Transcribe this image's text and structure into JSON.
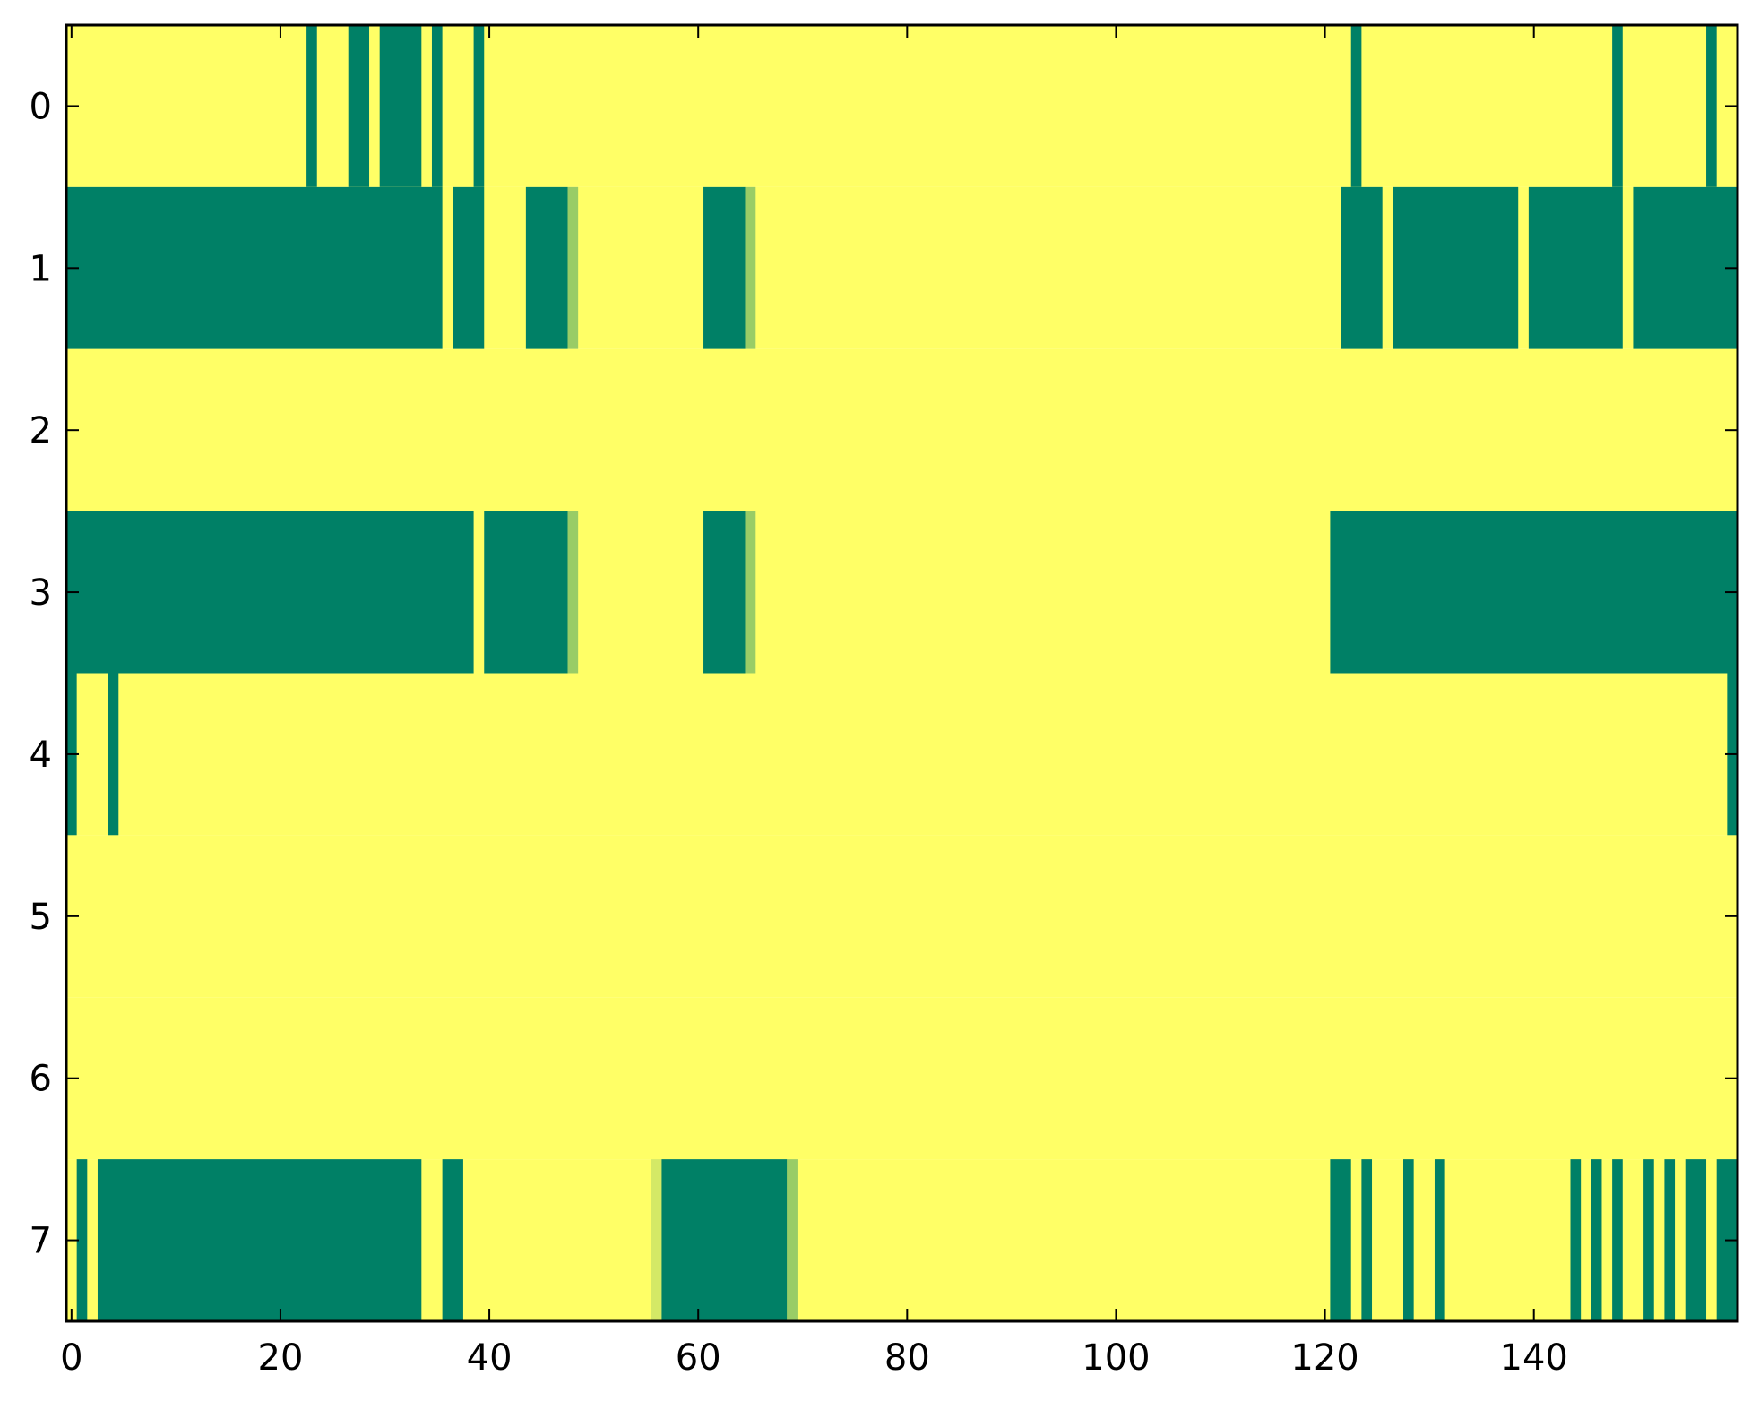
{
  "chart_data": {
    "type": "heatmap",
    "colormap": "summer_r",
    "colors": {
      "low": "#ffff66",
      "high": "#008066",
      "mid_light": "#99cc66",
      "mid_pale": "#d4e966"
    },
    "xlim": [
      -0.5,
      159.5
    ],
    "ylim": [
      7.5,
      -0.5
    ],
    "xticks": [
      0,
      20,
      40,
      60,
      80,
      100,
      120,
      140
    ],
    "yticks": [
      0,
      1,
      2,
      3,
      4,
      5,
      6,
      7
    ],
    "grid": false,
    "rows": [
      {
        "row": 0,
        "segments": [
          {
            "start": 23,
            "end": 23,
            "value": 1
          },
          {
            "start": 27,
            "end": 28,
            "value": 1
          },
          {
            "start": 30,
            "end": 33,
            "value": 1
          },
          {
            "start": 35,
            "end": 35,
            "value": 1
          },
          {
            "start": 39,
            "end": 39,
            "value": 1
          },
          {
            "start": 123,
            "end": 123,
            "value": 1
          },
          {
            "start": 148,
            "end": 148,
            "value": 1
          },
          {
            "start": 157,
            "end": 157,
            "value": 1
          }
        ]
      },
      {
        "row": 1,
        "segments": [
          {
            "start": 0,
            "end": 35,
            "value": 1
          },
          {
            "start": 37,
            "end": 39,
            "value": 1
          },
          {
            "start": 44,
            "end": 47,
            "value": 1
          },
          {
            "start": 48,
            "end": 48,
            "value": 0.6
          },
          {
            "start": 61,
            "end": 64,
            "value": 1
          },
          {
            "start": 65,
            "end": 65,
            "value": 0.6
          },
          {
            "start": 122,
            "end": 125,
            "value": 1
          },
          {
            "start": 127,
            "end": 138,
            "value": 1
          },
          {
            "start": 140,
            "end": 148,
            "value": 1
          },
          {
            "start": 150,
            "end": 159,
            "value": 1
          }
        ]
      },
      {
        "row": 2,
        "segments": []
      },
      {
        "row": 3,
        "segments": [
          {
            "start": 0,
            "end": 38,
            "value": 1
          },
          {
            "start": 40,
            "end": 47,
            "value": 1
          },
          {
            "start": 48,
            "end": 48,
            "value": 0.6
          },
          {
            "start": 61,
            "end": 64,
            "value": 1
          },
          {
            "start": 65,
            "end": 65,
            "value": 0.6
          },
          {
            "start": 121,
            "end": 159,
            "value": 1
          }
        ]
      },
      {
        "row": 4,
        "segments": [
          {
            "start": 0,
            "end": 0,
            "value": 1
          },
          {
            "start": 4,
            "end": 4,
            "value": 1
          },
          {
            "start": 159,
            "end": 159,
            "value": 1
          }
        ]
      },
      {
        "row": 5,
        "segments": []
      },
      {
        "row": 6,
        "segments": []
      },
      {
        "row": 7,
        "segments": [
          {
            "start": 1,
            "end": 1,
            "value": 1
          },
          {
            "start": 3,
            "end": 33,
            "value": 1
          },
          {
            "start": 36,
            "end": 37,
            "value": 1
          },
          {
            "start": 56,
            "end": 56,
            "value": 0.35
          },
          {
            "start": 57,
            "end": 68,
            "value": 1
          },
          {
            "start": 69,
            "end": 69,
            "value": 0.6
          },
          {
            "start": 121,
            "end": 122,
            "value": 1
          },
          {
            "start": 124,
            "end": 124,
            "value": 1
          },
          {
            "start": 128,
            "end": 128,
            "value": 1
          },
          {
            "start": 131,
            "end": 131,
            "value": 1
          },
          {
            "start": 144,
            "end": 144,
            "value": 1
          },
          {
            "start": 146,
            "end": 146,
            "value": 1
          },
          {
            "start": 148,
            "end": 148,
            "value": 1
          },
          {
            "start": 151,
            "end": 151,
            "value": 1
          },
          {
            "start": 153,
            "end": 153,
            "value": 1
          },
          {
            "start": 155,
            "end": 156,
            "value": 1
          },
          {
            "start": 158,
            "end": 159,
            "value": 1
          }
        ]
      }
    ]
  }
}
